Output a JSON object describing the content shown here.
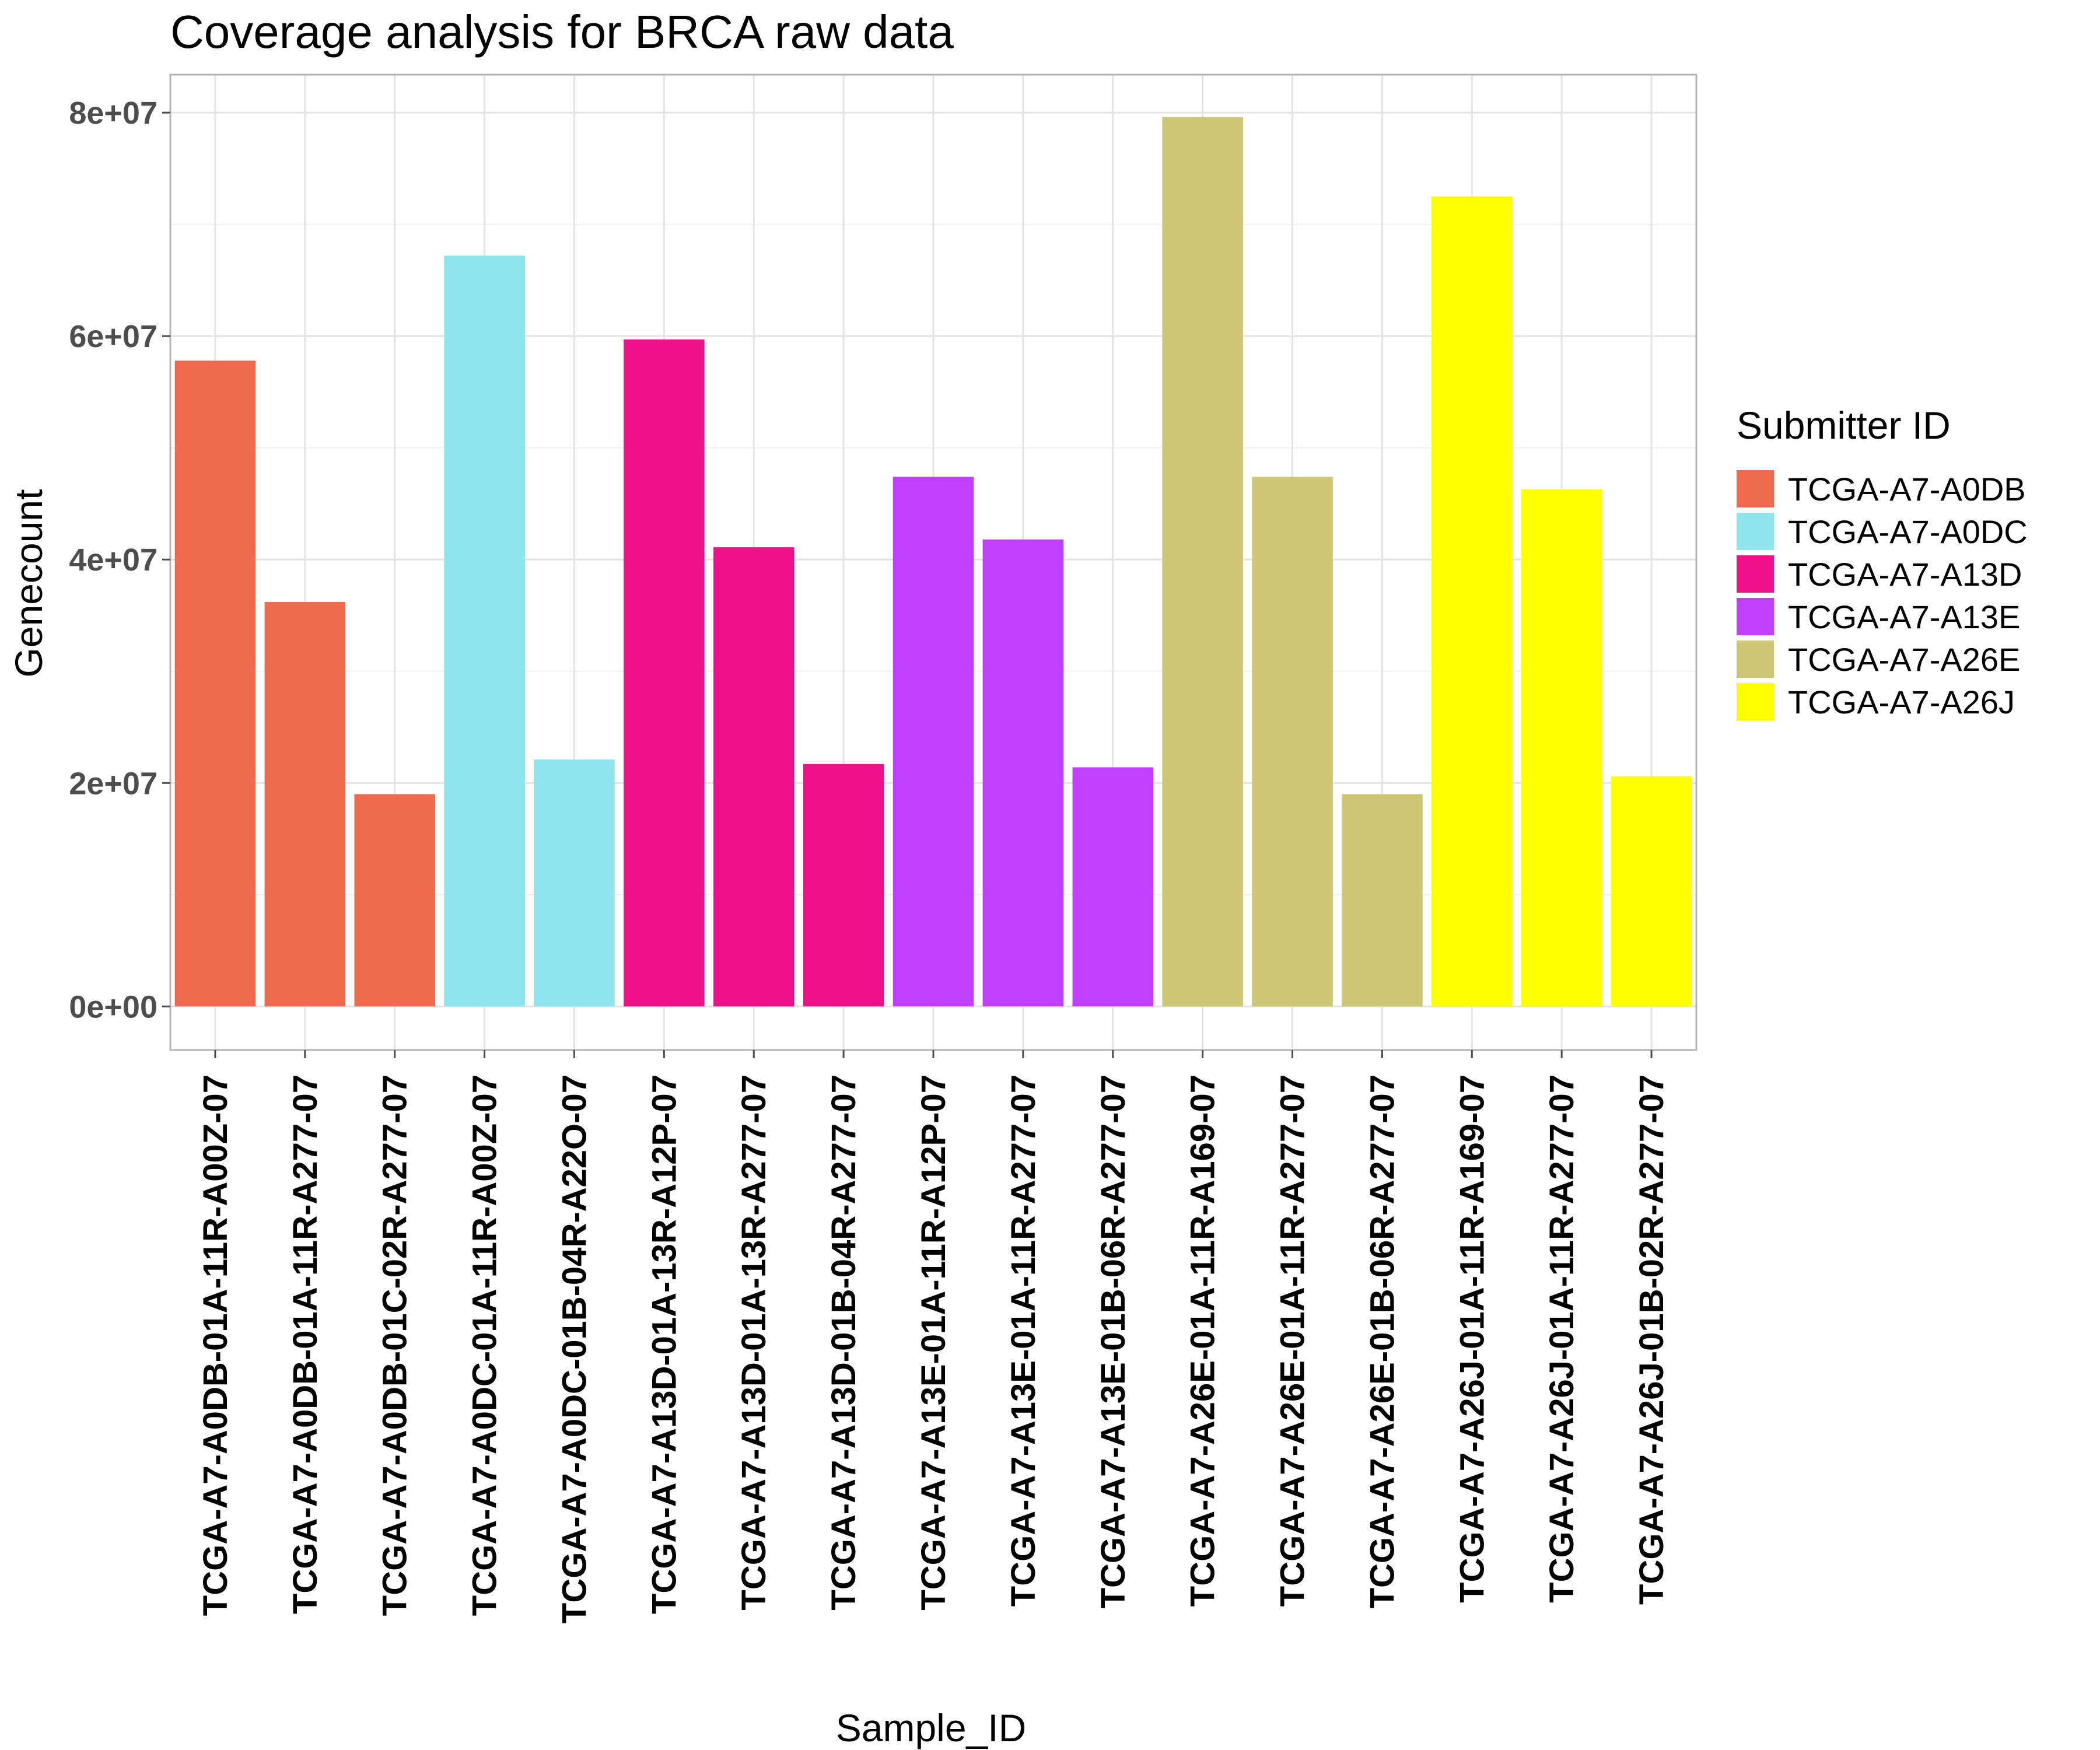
{
  "chart_data": {
    "type": "bar",
    "title": "Coverage analysis for BRCA raw data",
    "xlabel": "Sample_ID",
    "ylabel": "Genecount",
    "ylim": [
      -3900000,
      83400000
    ],
    "yticks": [
      0,
      20000000,
      40000000,
      60000000,
      80000000
    ],
    "ytick_labels": [
      "0e+00",
      "2e+07",
      "4e+07",
      "6e+07",
      "8e+07"
    ],
    "grid": true,
    "legend": {
      "title": "Submitter ID",
      "placement": "right",
      "entries": [
        {
          "label": "TCGA-A7-A0DB",
          "color": "#EE6A50"
        },
        {
          "label": "TCGA-A7-A0DC",
          "color": "#8EE5EE"
        },
        {
          "label": "TCGA-A7-A13D",
          "color": "#EE1289"
        },
        {
          "label": "TCGA-A7-A13E",
          "color": "#BF3EFF"
        },
        {
          "label": "TCGA-A7-A26E",
          "color": "#CDC673"
        },
        {
          "label": "TCGA-A7-A26J",
          "color": "#FFFF00"
        }
      ]
    },
    "categories": [
      "TCGA-A7-A0DB-01A-11R-A00Z-07",
      "TCGA-A7-A0DB-01A-11R-A277-07",
      "TCGA-A7-A0DB-01C-02R-A277-07",
      "TCGA-A7-A0DC-01A-11R-A00Z-07",
      "TCGA-A7-A0DC-01B-04R-A22O-07",
      "TCGA-A7-A13D-01A-13R-A12P-07",
      "TCGA-A7-A13D-01A-13R-A277-07",
      "TCGA-A7-A13D-01B-04R-A277-07",
      "TCGA-A7-A13E-01A-11R-A12P-07",
      "TCGA-A7-A13E-01A-11R-A277-07",
      "TCGA-A7-A13E-01B-06R-A277-07",
      "TCGA-A7-A26E-01A-11R-A169-07",
      "TCGA-A7-A26E-01A-11R-A277-07",
      "TCGA-A7-A26E-01B-06R-A277-07",
      "TCGA-A7-A26J-01A-11R-A169-07",
      "TCGA-A7-A26J-01A-11R-A277-07",
      "TCGA-A7-A26J-01B-02R-A277-07"
    ],
    "values": [
      57800000,
      36200000,
      19000000,
      67200000,
      22100000,
      59700000,
      41100000,
      21700000,
      47400000,
      41800000,
      21400000,
      79600000,
      47400000,
      19000000,
      72500000,
      46300000,
      20600000
    ],
    "groups": [
      "TCGA-A7-A0DB",
      "TCGA-A7-A0DB",
      "TCGA-A7-A0DB",
      "TCGA-A7-A0DC",
      "TCGA-A7-A0DC",
      "TCGA-A7-A13D",
      "TCGA-A7-A13D",
      "TCGA-A7-A13D",
      "TCGA-A7-A13E",
      "TCGA-A7-A13E",
      "TCGA-A7-A13E",
      "TCGA-A7-A26E",
      "TCGA-A7-A26E",
      "TCGA-A7-A26E",
      "TCGA-A7-A26J",
      "TCGA-A7-A26J",
      "TCGA-A7-A26J"
    ]
  }
}
